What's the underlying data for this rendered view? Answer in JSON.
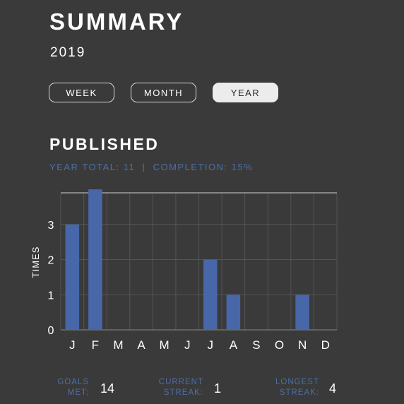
{
  "header": {
    "title": "SUMMARY",
    "year": "2019"
  },
  "period_tabs": [
    {
      "label": "WEEK",
      "selected": false
    },
    {
      "label": "MONTH",
      "selected": false
    },
    {
      "label": "YEAR",
      "selected": true
    }
  ],
  "section": {
    "title": "PUBLISHED",
    "year_total_label": "YEAR TOTAL:",
    "year_total_value": "11",
    "separator": "|",
    "completion_label": "COMPLETION:",
    "completion_value": "15%"
  },
  "chart_data": {
    "type": "bar",
    "categories": [
      "J",
      "F",
      "M",
      "A",
      "M",
      "J",
      "J",
      "A",
      "S",
      "O",
      "N",
      "D"
    ],
    "values": [
      3,
      4,
      0,
      0,
      0,
      0,
      2,
      1,
      0,
      0,
      1,
      0
    ],
    "ylabel": "TIMES",
    "yticks": [
      0,
      1,
      2,
      3
    ],
    "ylim": [
      0,
      3.9
    ],
    "grid": true,
    "bar_color": "#4767a8"
  },
  "footer": {
    "goals_met": {
      "label_line1": "GOALS",
      "label_line2": "MET:",
      "value": "14"
    },
    "current_streak": {
      "label_line1": "CURRENT",
      "label_line2": "STREAK:",
      "value": "1"
    },
    "longest_streak": {
      "label_line1": "LONGEST",
      "label_line2": "STREAK:",
      "value": "4"
    }
  },
  "colors": {
    "background": "#3a3a3a",
    "accent": "#4c6fa6",
    "bar": "#4767a8",
    "selected_tab": "#ececec"
  }
}
